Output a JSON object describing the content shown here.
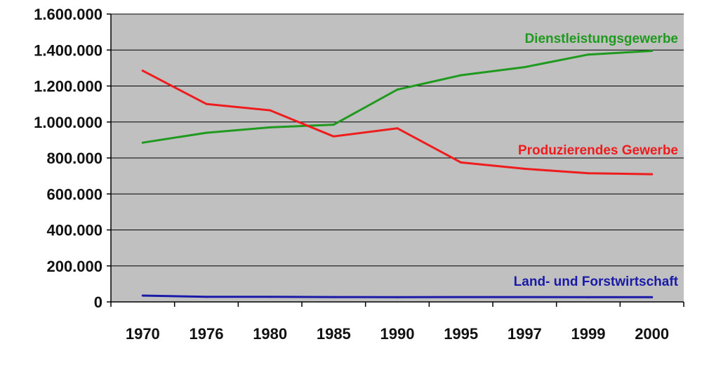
{
  "chart_data": {
    "type": "line",
    "categories": [
      "1970",
      "1976",
      "1980",
      "1985",
      "1990",
      "1995",
      "1997",
      "1999",
      "2000"
    ],
    "ylim": [
      0,
      1600000
    ],
    "yticks": [
      0,
      200000,
      400000,
      600000,
      800000,
      1000000,
      1200000,
      1400000,
      1600000
    ],
    "ytick_labels": [
      "0",
      "200.000",
      "400.000",
      "600.000",
      "800.000",
      "1.000.000",
      "1.200.000",
      "1.400.000",
      "1.600.000"
    ],
    "grid": true,
    "plot_background": "#c0c0c0",
    "series": [
      {
        "name": "Dienstleistungsgewerbe",
        "color": "#1f9a1f",
        "values": [
          885000,
          940000,
          970000,
          985000,
          1180000,
          1260000,
          1305000,
          1375000,
          1395000
        ]
      },
      {
        "name": "Produzierendes Gewerbe",
        "color": "#ee1c1c",
        "values": [
          1285000,
          1100000,
          1065000,
          920000,
          965000,
          775000,
          740000,
          715000,
          710000
        ]
      },
      {
        "name": "Land- und Forstwirtschaft",
        "color": "#1a1aa8",
        "values": [
          35000,
          28000,
          28000,
          27000,
          26000,
          27000,
          27000,
          26000,
          26000
        ]
      }
    ]
  }
}
